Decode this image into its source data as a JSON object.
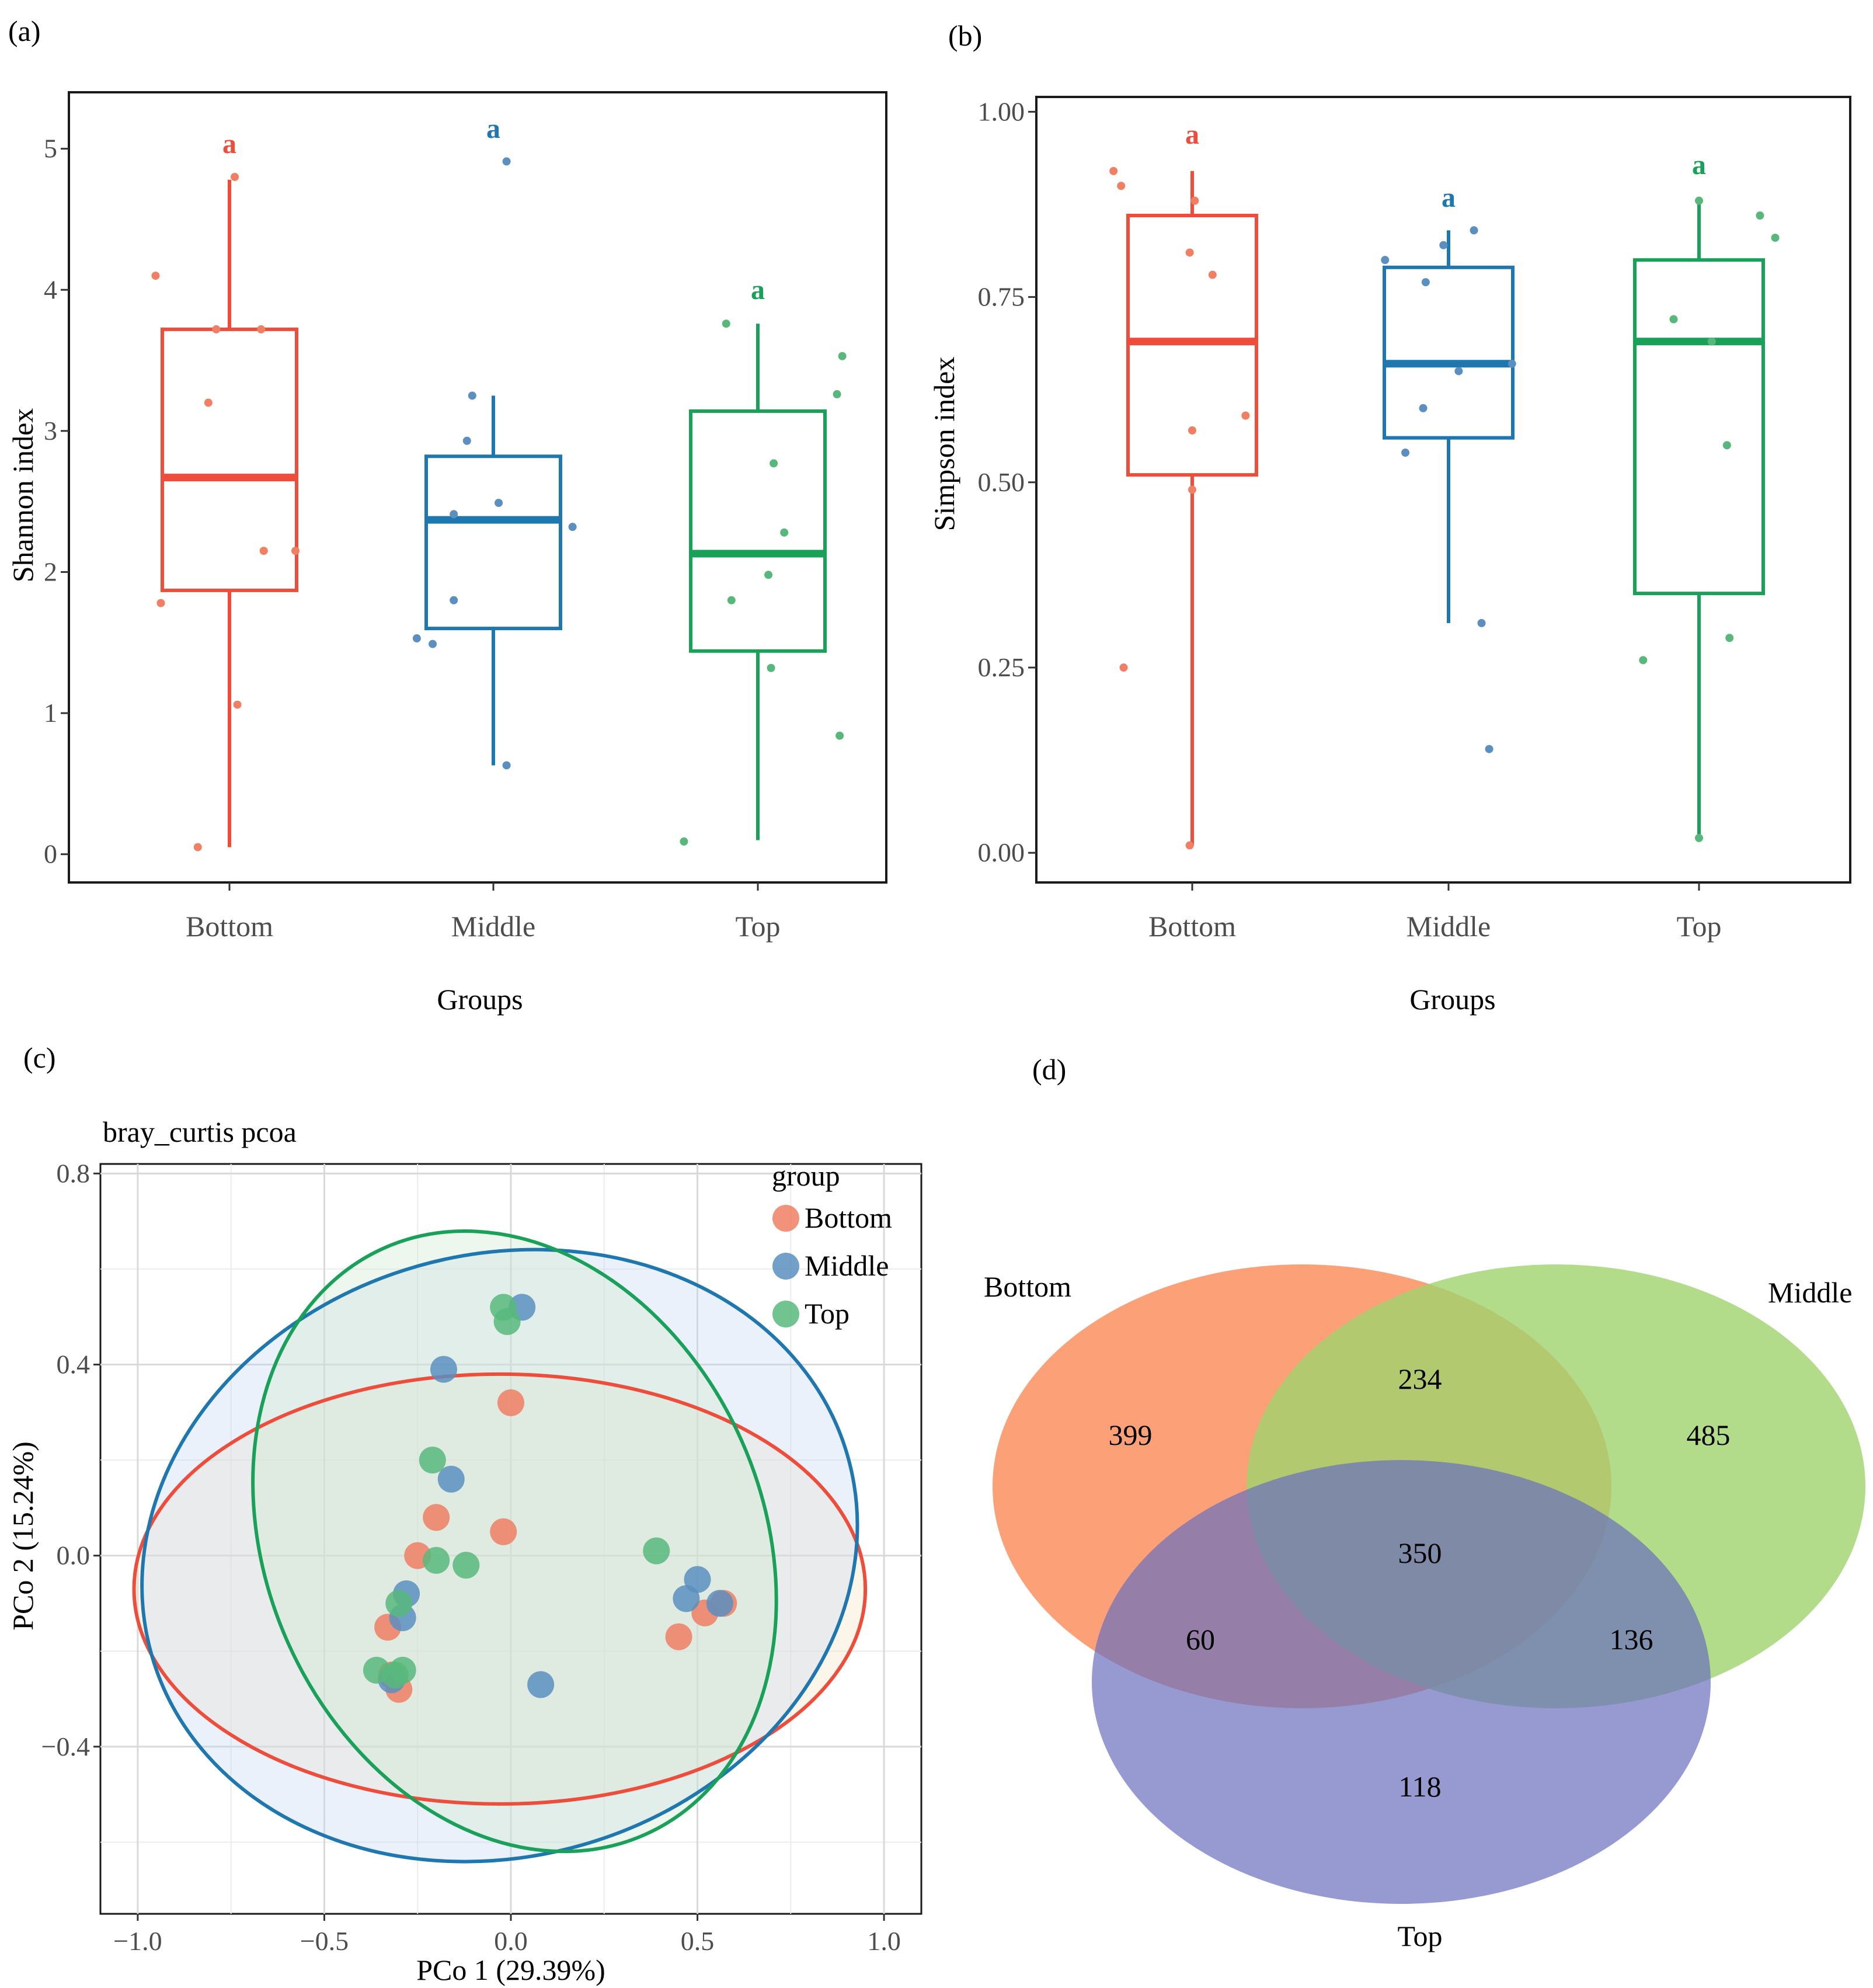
{
  "panels": {
    "a": {
      "label": "(a)"
    },
    "b": {
      "label": "(b)"
    },
    "c": {
      "label": "(c)"
    },
    "d": {
      "label": "(d)"
    }
  },
  "colors": {
    "bottom": "#ee4d3c",
    "middle": "#1f77b0",
    "top": "#19a15a",
    "bottom_point": "#f07f63",
    "middle_point": "#5a8fc0",
    "top_point": "#58b87b",
    "venn_bottom": "#fb8f5f",
    "venn_middle": "#9fd36d",
    "venn_top": "#6a6fbd"
  },
  "chart_data": [
    {
      "id": "a",
      "type": "box",
      "title": "",
      "xlabel": "Groups",
      "ylabel": "Shannon index",
      "categories": [
        "Bottom",
        "Middle",
        "Top"
      ],
      "ylim": [
        -0.2,
        5.4
      ],
      "yticks": [
        0,
        1,
        2,
        3,
        4,
        5
      ],
      "ytick_labels": [
        "0",
        "1",
        "2",
        "3",
        "4",
        "5"
      ],
      "boxes": [
        {
          "group": "Bottom",
          "whisker_low": 0.05,
          "q1": 1.87,
          "median": 2.67,
          "q3": 3.72,
          "whisker_high": 4.78,
          "letter": "a",
          "points": [
            [
              -0.12,
              0.05
            ],
            [
              0.02,
              4.8
            ],
            [
              -0.28,
              4.1
            ],
            [
              -0.05,
              3.72
            ],
            [
              0.12,
              3.72
            ],
            [
              -0.08,
              3.2
            ],
            [
              0.13,
              2.15
            ],
            [
              0.25,
              2.15
            ],
            [
              -0.26,
              1.78
            ],
            [
              0.03,
              1.06
            ]
          ]
        },
        {
          "group": "Middle",
          "whisker_low": 0.63,
          "q1": 1.6,
          "median": 2.37,
          "q3": 2.82,
          "whisker_high": 3.25,
          "letter": "a",
          "points": [
            [
              0.05,
              4.91
            ],
            [
              -0.08,
              3.25
            ],
            [
              -0.1,
              2.93
            ],
            [
              -0.15,
              2.41
            ],
            [
              0.02,
              2.49
            ],
            [
              0.3,
              2.32
            ],
            [
              -0.15,
              1.8
            ],
            [
              -0.29,
              1.53
            ],
            [
              -0.23,
              1.49
            ],
            [
              0.05,
              0.63
            ]
          ]
        },
        {
          "group": "Top",
          "whisker_low": 0.1,
          "q1": 1.44,
          "median": 2.13,
          "q3": 3.14,
          "whisker_high": 3.76,
          "letter": "a",
          "points": [
            [
              -0.12,
              3.76
            ],
            [
              0.32,
              3.53
            ],
            [
              0.3,
              3.26
            ],
            [
              0.06,
              2.77
            ],
            [
              0.1,
              2.28
            ],
            [
              0.04,
              1.98
            ],
            [
              -0.1,
              1.8
            ],
            [
              0.05,
              1.32
            ],
            [
              0.31,
              0.84
            ],
            [
              -0.28,
              0.09
            ]
          ]
        }
      ]
    },
    {
      "id": "b",
      "type": "box",
      "title": "",
      "xlabel": "Groups",
      "ylabel": "Simpson index",
      "categories": [
        "Bottom",
        "Middle",
        "Top"
      ],
      "ylim": [
        -0.04,
        1.02
      ],
      "yticks": [
        0,
        0.25,
        0.5,
        0.75,
        1.0
      ],
      "ytick_labels": [
        "0.00",
        "0.25",
        "0.50",
        "0.75",
        "1.00"
      ],
      "boxes": [
        {
          "group": "Bottom",
          "whisker_low": 0.01,
          "q1": 0.51,
          "median": 0.69,
          "q3": 0.86,
          "whisker_high": 0.92,
          "letter": "a",
          "points": [
            [
              -0.31,
              0.92
            ],
            [
              -0.28,
              0.9
            ],
            [
              0.01,
              0.88
            ],
            [
              -0.01,
              0.81
            ],
            [
              0.08,
              0.78
            ],
            [
              0.21,
              0.59
            ],
            [
              0.0,
              0.57
            ],
            [
              0.0,
              0.49
            ],
            [
              -0.27,
              0.25
            ],
            [
              -0.01,
              0.01
            ]
          ]
        },
        {
          "group": "Middle",
          "whisker_low": 0.31,
          "q1": 0.56,
          "median": 0.66,
          "q3": 0.79,
          "whisker_high": 0.84,
          "letter": "a",
          "points": [
            [
              0.1,
              0.84
            ],
            [
              -0.02,
              0.82
            ],
            [
              -0.25,
              0.8
            ],
            [
              -0.09,
              0.77
            ],
            [
              0.25,
              0.66
            ],
            [
              0.04,
              0.65
            ],
            [
              -0.1,
              0.6
            ],
            [
              -0.17,
              0.54
            ],
            [
              0.13,
              0.31
            ],
            [
              0.16,
              0.14
            ]
          ]
        },
        {
          "group": "Top",
          "whisker_low": 0.02,
          "q1": 0.35,
          "median": 0.69,
          "q3": 0.8,
          "whisker_high": 0.88,
          "letter": "a",
          "points": [
            [
              0.0,
              0.88
            ],
            [
              0.24,
              0.86
            ],
            [
              0.3,
              0.83
            ],
            [
              -0.1,
              0.72
            ],
            [
              0.05,
              0.69
            ],
            [
              0.11,
              0.55
            ],
            [
              0.12,
              0.29
            ],
            [
              -0.22,
              0.26
            ],
            [
              0.0,
              0.02
            ]
          ]
        }
      ]
    },
    {
      "id": "c",
      "type": "scatter",
      "title": "bray_curtis pcoa",
      "xlabel": "PCo 1 (29.39%)",
      "ylabel": "PCo 2 (15.24%)",
      "xlim": [
        -1.1,
        1.1
      ],
      "ylim": [
        -0.75,
        0.82
      ],
      "xticks": [
        -1.0,
        -0.5,
        0.0,
        0.5,
        1.0
      ],
      "xtick_labels": [
        "−1.0",
        "−0.5",
        "0.0",
        "0.5",
        "1.0"
      ],
      "yticks": [
        0.8,
        0.4,
        0.0,
        -0.4
      ],
      "ytick_labels": [
        "0.8",
        "0.4",
        "0.0",
        "−0.4"
      ],
      "legend": {
        "title": "group",
        "position": "top-right",
        "entries": [
          "Bottom",
          "Middle",
          "Top"
        ]
      },
      "series": [
        {
          "name": "Bottom",
          "points": [
            [
              0.0,
              0.32
            ],
            [
              -0.2,
              0.08
            ],
            [
              -0.02,
              0.05
            ],
            [
              -0.25,
              0.0
            ],
            [
              -0.33,
              -0.15
            ],
            [
              0.45,
              -0.17
            ],
            [
              0.52,
              -0.12
            ],
            [
              0.57,
              -0.1
            ],
            [
              -0.3,
              -0.28
            ],
            [
              -0.32,
              -0.25
            ]
          ],
          "ellipse": {
            "cx": -0.03,
            "cy": -0.07,
            "rx": 0.98,
            "ry": 0.45,
            "angle": 0
          }
        },
        {
          "name": "Middle",
          "points": [
            [
              0.03,
              0.52
            ],
            [
              -0.18,
              0.39
            ],
            [
              -0.16,
              0.16
            ],
            [
              -0.28,
              -0.08
            ],
            [
              -0.29,
              -0.13
            ],
            [
              -0.32,
              -0.26
            ],
            [
              0.5,
              -0.05
            ],
            [
              0.47,
              -0.09
            ],
            [
              0.56,
              -0.1
            ],
            [
              0.08,
              -0.27
            ]
          ],
          "ellipse": {
            "cx": -0.03,
            "cy": 0.0,
            "rx": 0.97,
            "ry": 0.63,
            "angle": -16
          }
        },
        {
          "name": "Top",
          "points": [
            [
              -0.02,
              0.52
            ],
            [
              -0.01,
              0.49
            ],
            [
              -0.21,
              0.2
            ],
            [
              -0.12,
              -0.02
            ],
            [
              -0.2,
              -0.01
            ],
            [
              0.39,
              0.01
            ],
            [
              -0.3,
              -0.1
            ],
            [
              -0.36,
              -0.24
            ],
            [
              -0.29,
              -0.24
            ],
            [
              -0.31,
              -0.25
            ]
          ],
          "ellipse": {
            "cx": 0.01,
            "cy": 0.03,
            "rx": 0.86,
            "ry": 0.52,
            "angle": 66
          }
        }
      ]
    },
    {
      "id": "d",
      "type": "venn",
      "sets": [
        "Bottom",
        "Middle",
        "Top"
      ],
      "regions": [
        {
          "sets": [
            "Bottom"
          ],
          "value": 399
        },
        {
          "sets": [
            "Middle"
          ],
          "value": 485
        },
        {
          "sets": [
            "Top"
          ],
          "value": 118
        },
        {
          "sets": [
            "Bottom",
            "Middle"
          ],
          "value": 234
        },
        {
          "sets": [
            "Bottom",
            "Top"
          ],
          "value": 60
        },
        {
          "sets": [
            "Middle",
            "Top"
          ],
          "value": 136
        },
        {
          "sets": [
            "Bottom",
            "Middle",
            "Top"
          ],
          "value": 350
        }
      ]
    }
  ]
}
